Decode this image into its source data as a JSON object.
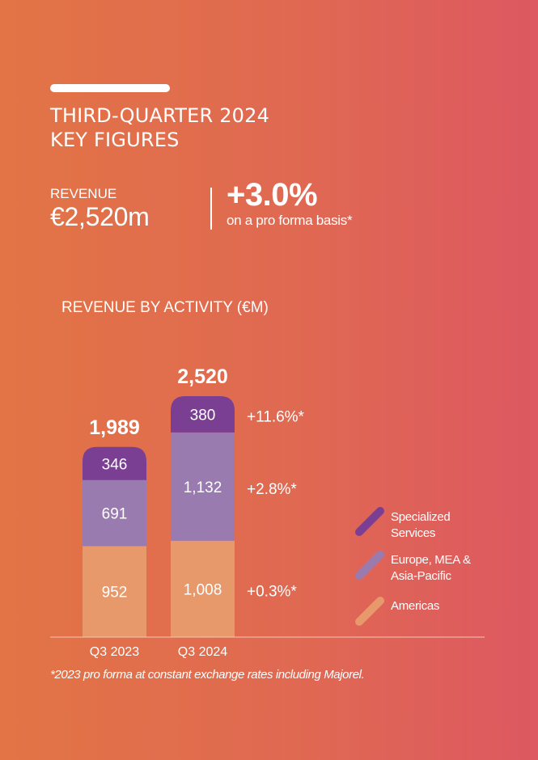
{
  "header": {
    "title_line1": "THIRD-QUARTER 2024",
    "title_line2": "KEY FIGURES"
  },
  "revenue": {
    "label": "REVENUE",
    "value": "€2,520m"
  },
  "growth": {
    "value": "+3.0%",
    "note": "on a pro forma basis*"
  },
  "chart_title": "REVENUE BY ACTIVITY (€M)",
  "legend": [
    {
      "line1": "Specialized",
      "line2": "Services",
      "color": "#7a3f92"
    },
    {
      "line1": "Europe, MEA &",
      "line2": "Asia-Pacific",
      "color": "#9a7bb0"
    },
    {
      "line1": "Americas",
      "line2": "",
      "color": "#e8996b"
    }
  ],
  "footnote": "*2023 pro forma at constant exchange rates including Majorel.",
  "chart_data": {
    "type": "bar",
    "stacked": true,
    "categories": [
      "Q3 2023",
      "Q3 2024"
    ],
    "series": [
      {
        "name": "Americas",
        "values": [
          952,
          1008
        ],
        "labels": [
          "952",
          "1,008"
        ],
        "color": "#e8996b",
        "growth": "+0.3%*"
      },
      {
        "name": "Europe, MEA & Asia-Pacific",
        "values": [
          691,
          1132
        ],
        "labels": [
          "691",
          "1,132"
        ],
        "color": "#9a7bb0",
        "growth": "+2.8%*"
      },
      {
        "name": "Specialized Services",
        "values": [
          346,
          380
        ],
        "labels": [
          "346",
          "380"
        ],
        "color": "#7a3f92",
        "growth": "+11.6%*"
      }
    ],
    "totals": [
      1989,
      2520
    ],
    "total_labels": [
      "1,989",
      "2,520"
    ],
    "ylim": [
      0,
      2520
    ],
    "title": "REVENUE BY ACTIVITY (€M)",
    "xlabel": "",
    "ylabel": "",
    "grid": false,
    "legend": "right"
  }
}
